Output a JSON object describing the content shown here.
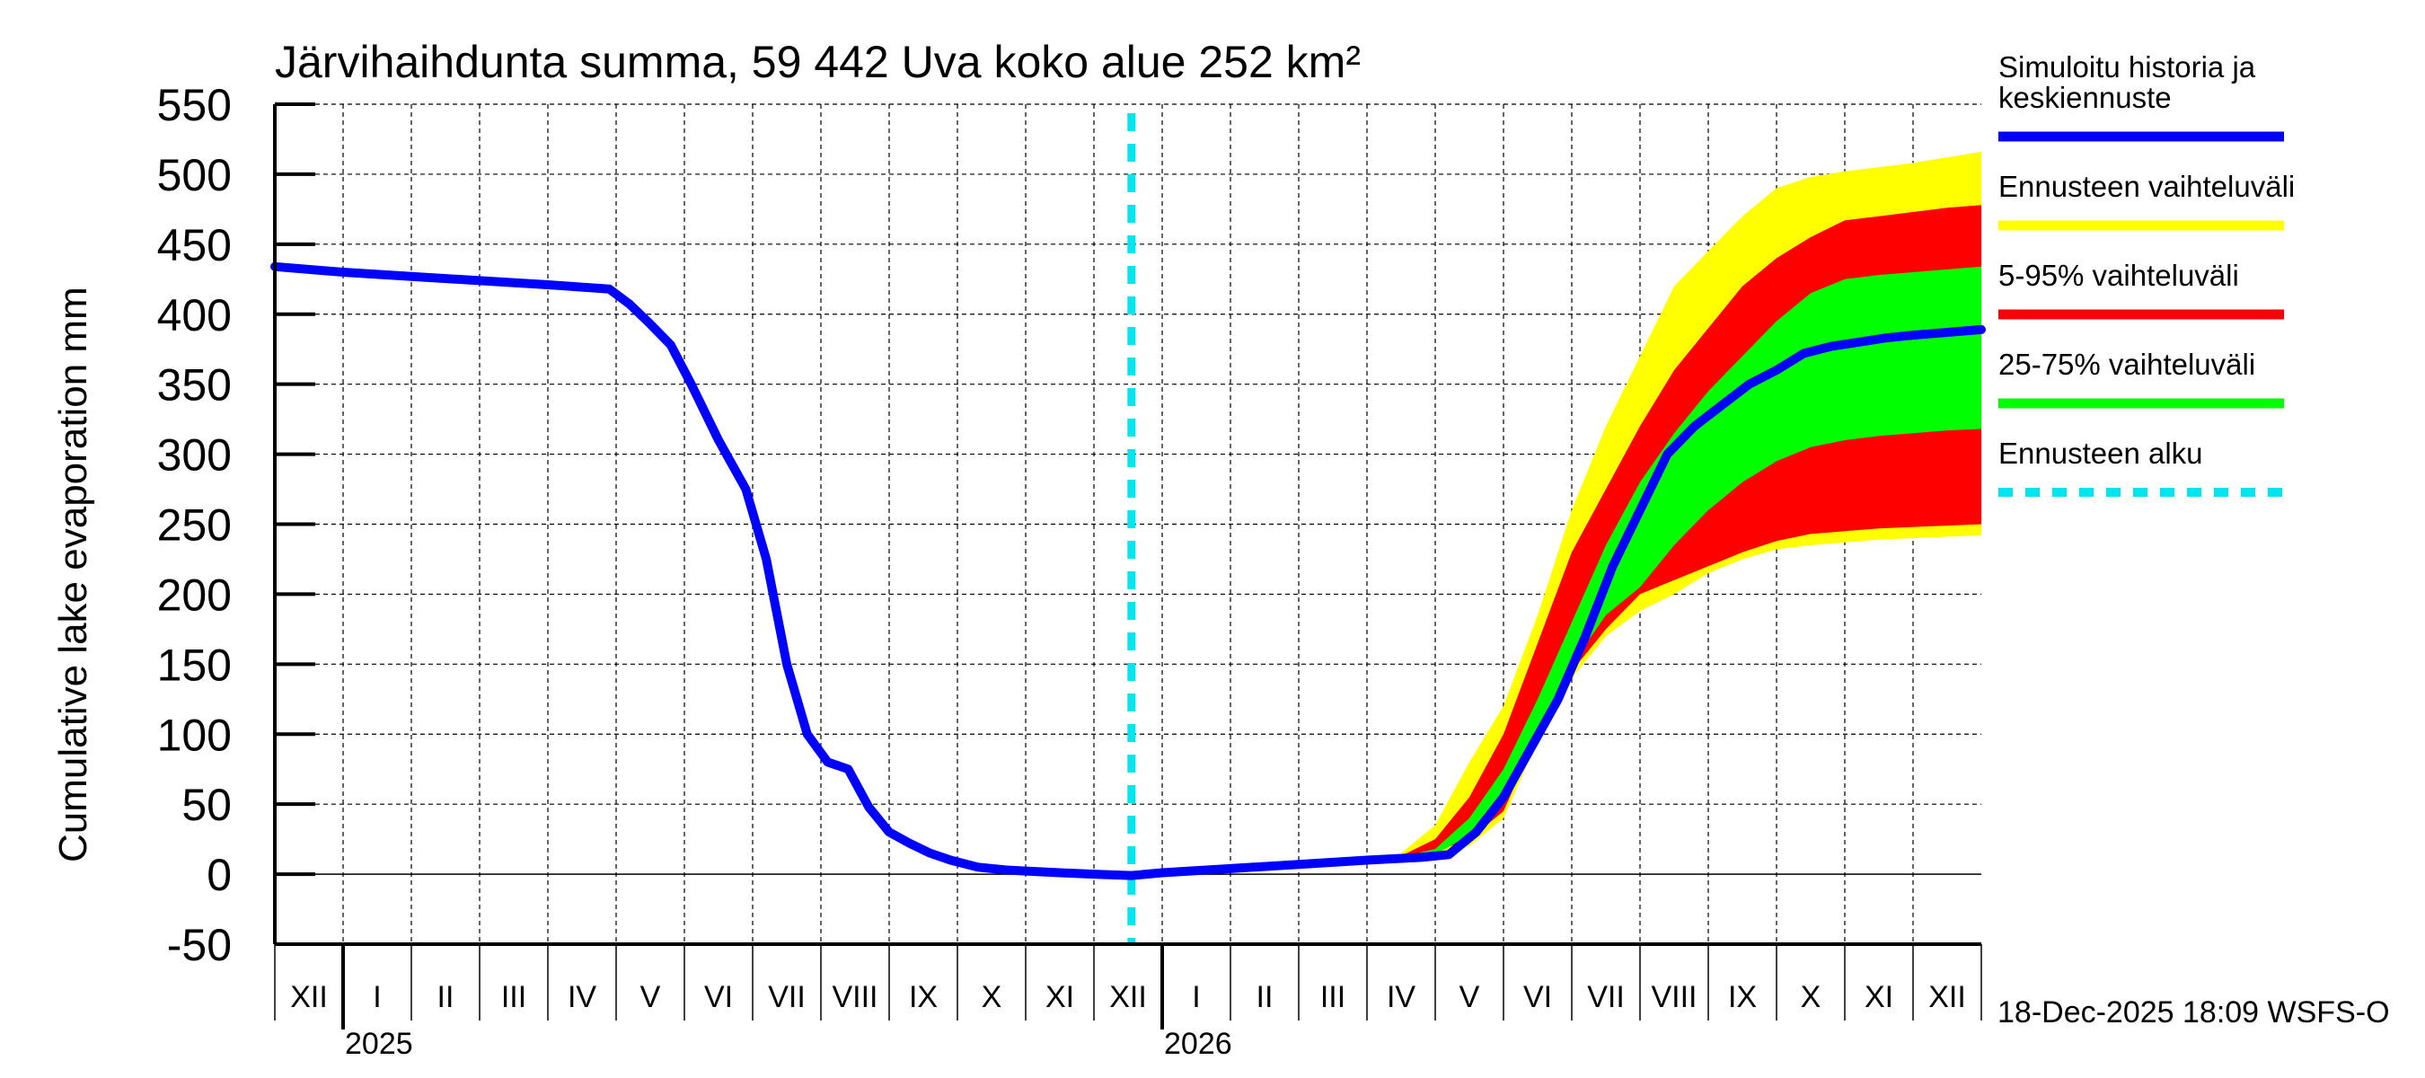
{
  "chart_data": {
    "type": "area",
    "title": "Järvihaihdunta summa, 59 442 Uva koko alue 252 km²",
    "ylabel": "Cumulative lake evaporation   mm",
    "xlabel": "",
    "ylim": [
      -50,
      550
    ],
    "yticks": [
      "550",
      "500",
      "450",
      "400",
      "350",
      "300",
      "250",
      "200",
      "150",
      "100",
      "50",
      "0",
      "-50"
    ],
    "ytick_values": [
      550,
      500,
      450,
      400,
      350,
      300,
      250,
      200,
      150,
      100,
      50,
      0,
      -50
    ],
    "x_unit": "months since 1-Dec-2024",
    "xlim": [
      0,
      25
    ],
    "month_labels": [
      "XII",
      "I",
      "II",
      "III",
      "IV",
      "V",
      "VI",
      "VII",
      "VIII",
      "IX",
      "X",
      "XI",
      "XII",
      "I",
      "II",
      "III",
      "IV",
      "V",
      "VI",
      "VII",
      "VIII",
      "IX",
      "X",
      "XI",
      "XII"
    ],
    "year_labels": [
      {
        "label": "2025",
        "month_index": 1
      },
      {
        "label": "2026",
        "month_index": 13
      }
    ],
    "forecast_start": 12.55,
    "grid": true,
    "legend_position": "right",
    "legend": [
      {
        "label_lines": [
          "Simuloitu historia ja",
          "keskiennuste"
        ],
        "color": "#0000ff",
        "style": "solid"
      },
      {
        "label_lines": [
          "Ennusteen vaihteluväli"
        ],
        "color": "#ffff00",
        "style": "solid"
      },
      {
        "label_lines": [
          "5-95% vaihteluväli"
        ],
        "color": "#ff0000",
        "style": "solid"
      },
      {
        "label_lines": [
          "25-75% vaihteluväli"
        ],
        "color": "#00ff00",
        "style": "solid"
      },
      {
        "label_lines": [
          "Ennusteen alku"
        ],
        "color": "#00e5ee",
        "style": "dashed"
      }
    ],
    "timestamp": "18-Dec-2025 18:09 WSFS-O",
    "series": [
      {
        "name": "Simuloitu historia ja keskiennuste",
        "color": "#0000ff",
        "x": [
          0,
          1,
          2,
          3,
          4,
          4.9,
          5.2,
          5.5,
          5.8,
          6.1,
          6.5,
          6.9,
          7.2,
          7.5,
          7.8,
          8.1,
          8.4,
          8.7,
          9.0,
          9.3,
          9.6,
          9.9,
          10.3,
          10.7,
          11.1,
          11.5,
          12.0,
          12.55,
          13,
          14,
          15,
          16,
          16.8,
          17.2,
          17.6,
          18.0,
          18.4,
          18.8,
          19.2,
          19.6,
          20.0,
          20.4,
          20.8,
          21.2,
          21.6,
          22.0,
          22.4,
          22.8,
          23.2,
          23.6,
          24.0,
          24.5,
          25
        ],
        "y": [
          434,
          430,
          427,
          424,
          421,
          418,
          407,
          393,
          378,
          350,
          310,
          275,
          225,
          150,
          100,
          80,
          75,
          48,
          30,
          22,
          15,
          10,
          5,
          3,
          2,
          1,
          0,
          -1,
          1,
          4,
          7,
          10,
          12,
          14,
          30,
          55,
          90,
          125,
          170,
          220,
          260,
          300,
          320,
          335,
          350,
          360,
          372,
          377,
          380,
          383,
          385,
          387,
          389
        ]
      },
      {
        "name": "Ennusteen vaihteluväli",
        "color": "#ffff00",
        "x": [
          16.5,
          17.0,
          17.5,
          18.0,
          18.5,
          19.0,
          19.5,
          20.0,
          20.5,
          21.0,
          21.5,
          22.0,
          22.5,
          23.0,
          23.5,
          24.0,
          24.5,
          25
        ],
        "upper": [
          15,
          35,
          80,
          120,
          185,
          260,
          320,
          370,
          420,
          445,
          470,
          490,
          498,
          502,
          505,
          508,
          512,
          516
        ],
        "lower": [
          12,
          15,
          20,
          40,
          95,
          140,
          170,
          188,
          200,
          215,
          225,
          232,
          235,
          237,
          239,
          240,
          241,
          242
        ]
      },
      {
        "name": "5-95% vaihteluväli",
        "color": "#ff0000",
        "x": [
          16.5,
          17.0,
          17.5,
          18.0,
          18.5,
          19.0,
          19.5,
          20.0,
          20.5,
          21.0,
          21.5,
          22.0,
          22.5,
          23.0,
          23.5,
          24.0,
          24.5,
          25
        ],
        "upper": [
          13,
          25,
          55,
          100,
          165,
          230,
          275,
          320,
          360,
          390,
          420,
          440,
          455,
          467,
          470,
          473,
          476,
          478
        ],
        "lower": [
          12,
          16,
          25,
          45,
          100,
          145,
          175,
          200,
          210,
          220,
          230,
          238,
          243,
          245,
          247,
          248,
          249,
          250
        ]
      },
      {
        "name": "25-75% vaihteluväli",
        "color": "#00ff00",
        "x": [
          16.5,
          17.0,
          17.5,
          18.0,
          18.5,
          19.0,
          19.5,
          20.0,
          20.5,
          21.0,
          21.5,
          22.0,
          22.5,
          23.0,
          23.5,
          24.0,
          24.5,
          25
        ],
        "upper": [
          12,
          18,
          40,
          75,
          125,
          180,
          235,
          280,
          315,
          345,
          370,
          395,
          415,
          425,
          428,
          430,
          432,
          434
        ],
        "lower": [
          11,
          14,
          28,
          55,
          100,
          150,
          185,
          205,
          235,
          260,
          280,
          295,
          305,
          310,
          313,
          315,
          317,
          318
        ]
      }
    ]
  }
}
